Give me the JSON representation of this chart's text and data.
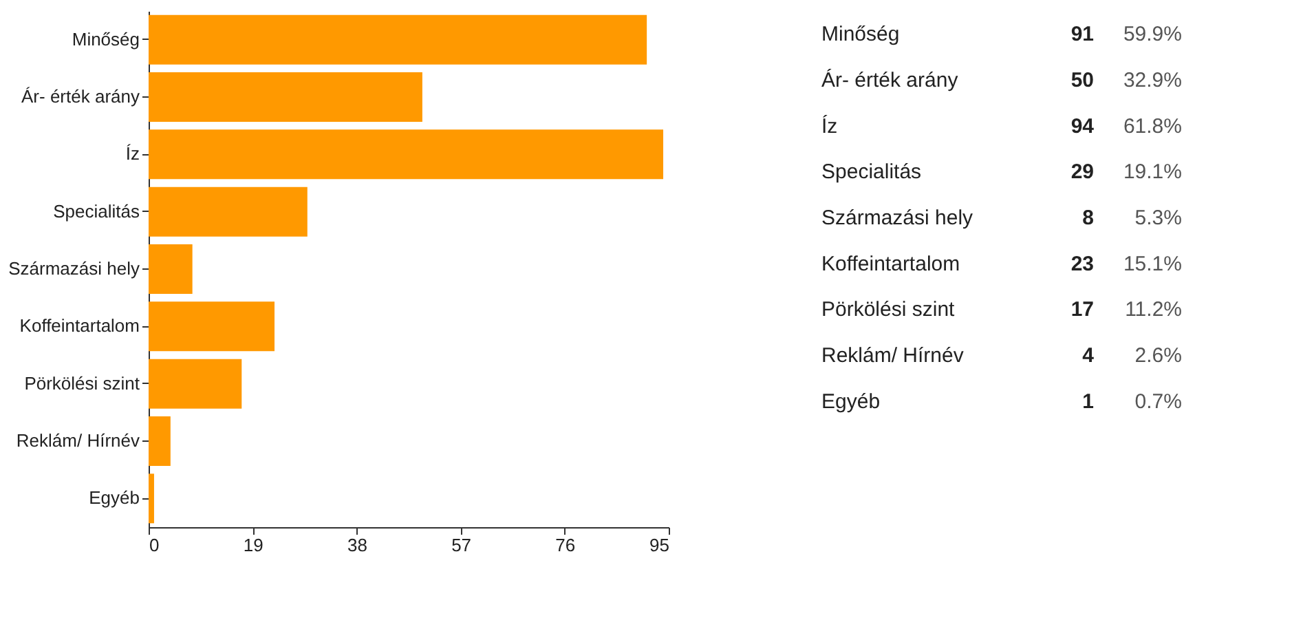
{
  "chart_data": [
    {
      "type": "bar",
      "orientation": "horizontal",
      "categories": [
        "Minőség",
        "Ár- érték arány",
        "Íz",
        "Specialitás",
        "Származási hely",
        "Koffeintartalom",
        "Pörkölési szint",
        "Reklám/ Hírnév",
        "Egyéb"
      ],
      "values": [
        91,
        50,
        94,
        29,
        8,
        23,
        17,
        4,
        1
      ],
      "color": "#ff9900",
      "xlim": [
        0,
        95
      ],
      "xticks": [
        0,
        19,
        38,
        57,
        76,
        95
      ],
      "grid": false,
      "legend": false
    },
    {
      "type": "other",
      "categories": [
        "Minőség",
        "Ár- érték arány",
        "Íz",
        "Specialitás",
        "Származási hely",
        "Koffeintartalom",
        "Pörkölési szint",
        "Reklám/ Hírnév",
        "Egyéb"
      ],
      "values": [
        91,
        50,
        94,
        29,
        8,
        23,
        17,
        4,
        1
      ],
      "data_labels": true,
      "annotations": [
        "59.9%",
        "32.9%",
        "61.8%",
        "19.1%",
        "5.3%",
        "15.1%",
        "11.2%",
        "2.6%",
        "0.7%"
      ]
    }
  ]
}
